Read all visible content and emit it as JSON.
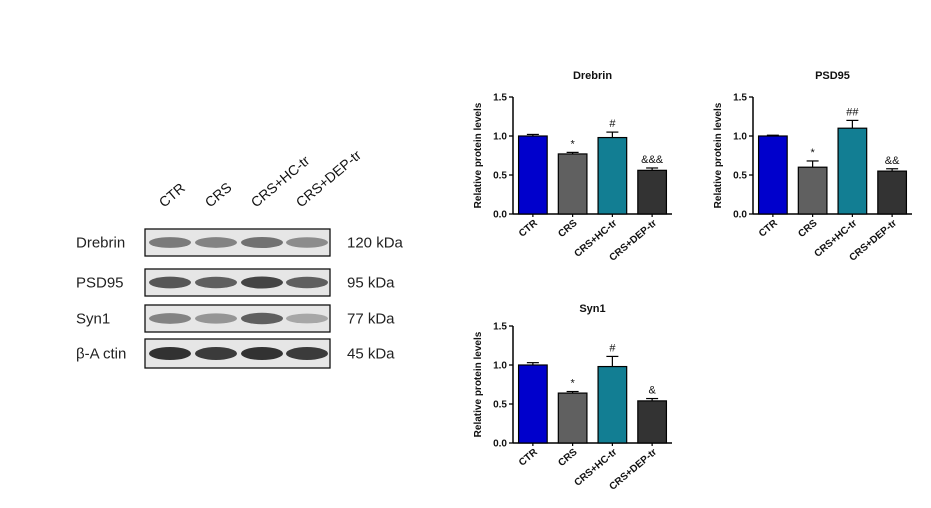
{
  "blot": {
    "lanes": [
      "CTR",
      "CRS",
      "CRS+HC-tr",
      "CRS+DEP-tr"
    ],
    "rows": [
      {
        "protein": "Drebrin",
        "kda": "120 kDa",
        "intensity": [
          0.55,
          0.5,
          0.6,
          0.45
        ]
      },
      {
        "protein": "PSD95",
        "kda": "95 kDa",
        "intensity": [
          0.75,
          0.7,
          0.85,
          0.7
        ]
      },
      {
        "protein": "Syn1",
        "kda": "77 kDa",
        "intensity": [
          0.5,
          0.4,
          0.7,
          0.3
        ]
      },
      {
        "protein": "β-A ctin",
        "kda": "45 kDa",
        "intensity": [
          0.95,
          0.9,
          0.95,
          0.9
        ]
      }
    ]
  },
  "chart_data": [
    {
      "type": "bar",
      "title": "Drebrin",
      "ylabel": "Relative protein levels",
      "categories": [
        "CTR",
        "CRS",
        "CRS+HC-tr",
        "CRS+DEP-tr"
      ],
      "values": [
        1.0,
        0.77,
        0.98,
        0.56
      ],
      "errors": [
        0.02,
        0.02,
        0.07,
        0.03
      ],
      "annotations": [
        "",
        "*",
        "#",
        "&&&"
      ],
      "colors": [
        "#0000cc",
        "#606060",
        "#127e93",
        "#333333"
      ],
      "ylim": [
        0,
        1.5
      ],
      "yticks": [
        "0.0",
        "0.5",
        "1.0",
        "1.5"
      ]
    },
    {
      "type": "bar",
      "title": "PSD95",
      "ylabel": "Relative protein levels",
      "categories": [
        "CTR",
        "CRS",
        "CRS+HC-tr",
        "CRS+DEP-tr"
      ],
      "values": [
        1.0,
        0.6,
        1.1,
        0.55
      ],
      "errors": [
        0.01,
        0.08,
        0.1,
        0.03
      ],
      "annotations": [
        "",
        "*",
        "##",
        "&&"
      ],
      "colors": [
        "#0000cc",
        "#606060",
        "#127e93",
        "#333333"
      ],
      "ylim": [
        0,
        1.5
      ],
      "yticks": [
        "0.0",
        "0.5",
        "1.0",
        "1.5"
      ]
    },
    {
      "type": "bar",
      "title": "Syn1",
      "ylabel": "Relative protein levels",
      "categories": [
        "CTR",
        "CRS",
        "CRS+HC-tr",
        "CRS+DEP-tr"
      ],
      "values": [
        1.0,
        0.64,
        0.98,
        0.54
      ],
      "errors": [
        0.03,
        0.02,
        0.13,
        0.03
      ],
      "annotations": [
        "",
        "*",
        "#",
        "&"
      ],
      "colors": [
        "#0000cc",
        "#606060",
        "#127e93",
        "#333333"
      ],
      "ylim": [
        0,
        1.5
      ],
      "yticks": [
        "0.0",
        "0.5",
        "1.0",
        "1.5"
      ]
    }
  ]
}
